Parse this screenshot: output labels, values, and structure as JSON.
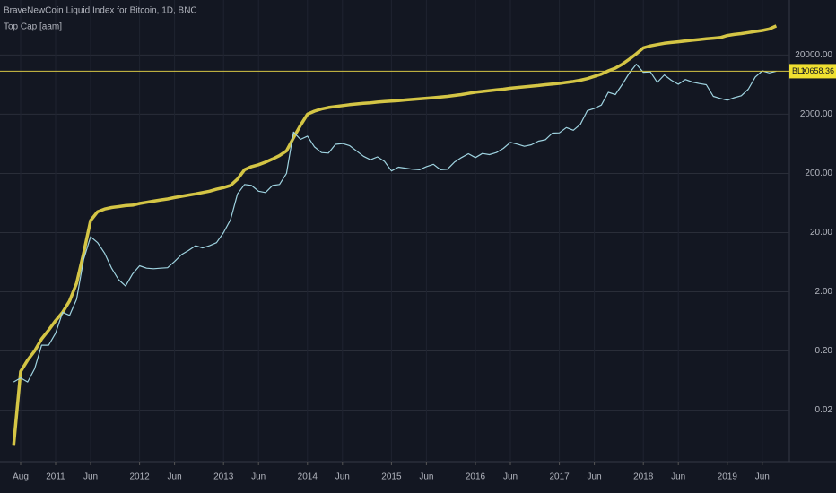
{
  "chart_data": {
    "type": "line",
    "title": "BraveNewCoin Liquid Index for Bitcoin, 1D, BNC",
    "subtitle": "Top Cap [aam]",
    "log_scale": true,
    "grid": true,
    "x": [
      "2010-07",
      "2010-08",
      "2010-09",
      "2010-10",
      "2010-11",
      "2010-12",
      "2011-01",
      "2011-02",
      "2011-03",
      "2011-04",
      "2011-05",
      "2011-06",
      "2011-07",
      "2011-08",
      "2011-09",
      "2011-10",
      "2011-11",
      "2011-12",
      "2012-01",
      "2012-02",
      "2012-03",
      "2012-04",
      "2012-05",
      "2012-06",
      "2012-07",
      "2012-08",
      "2012-09",
      "2012-10",
      "2012-11",
      "2012-12",
      "2013-01",
      "2013-02",
      "2013-03",
      "2013-04",
      "2013-05",
      "2013-06",
      "2013-07",
      "2013-08",
      "2013-09",
      "2013-10",
      "2013-11",
      "2013-12",
      "2014-01",
      "2014-02",
      "2014-03",
      "2014-04",
      "2014-05",
      "2014-06",
      "2014-07",
      "2014-08",
      "2014-09",
      "2014-10",
      "2014-11",
      "2014-12",
      "2015-01",
      "2015-02",
      "2015-03",
      "2015-04",
      "2015-05",
      "2015-06",
      "2015-07",
      "2015-08",
      "2015-09",
      "2015-10",
      "2015-11",
      "2015-12",
      "2016-01",
      "2016-02",
      "2016-03",
      "2016-04",
      "2016-05",
      "2016-06",
      "2016-07",
      "2016-08",
      "2016-09",
      "2016-10",
      "2016-11",
      "2016-12",
      "2017-01",
      "2017-02",
      "2017-03",
      "2017-04",
      "2017-05",
      "2017-06",
      "2017-07",
      "2017-08",
      "2017-09",
      "2017-10",
      "2017-11",
      "2017-12",
      "2018-01",
      "2018-02",
      "2018-03",
      "2018-04",
      "2018-05",
      "2018-06",
      "2018-07",
      "2018-08",
      "2018-09",
      "2018-10",
      "2018-11",
      "2018-12",
      "2019-01",
      "2019-02",
      "2019-03",
      "2019-04",
      "2019-05",
      "2019-06",
      "2019-07",
      "2019-08"
    ],
    "series": [
      {
        "name": "BLX",
        "color": "#9fd3e0",
        "values": [
          0.06,
          0.07,
          0.06,
          0.1,
          0.25,
          0.25,
          0.4,
          0.9,
          0.8,
          1.5,
          7,
          17,
          13.5,
          9,
          5,
          3.2,
          2.5,
          4,
          5.5,
          5,
          4.9,
          5,
          5.1,
          6.5,
          8.5,
          10,
          12,
          11,
          12,
          13.5,
          20,
          33,
          90,
          130,
          125,
          100,
          95,
          125,
          130,
          200,
          1000,
          750,
          850,
          560,
          450,
          440,
          620,
          640,
          590,
          480,
          390,
          340,
          380,
          320,
          220,
          255,
          245,
          235,
          230,
          260,
          285,
          230,
          235,
          310,
          370,
          430,
          370,
          435,
          415,
          450,
          530,
          670,
          625,
          575,
          610,
          700,
          740,
          960,
          970,
          1190,
          1070,
          1350,
          2300,
          2500,
          2850,
          4700,
          4300,
          6400,
          9900,
          14000,
          10200,
          10400,
          6900,
          9200,
          7500,
          6400,
          7700,
          7000,
          6600,
          6300,
          4000,
          3700,
          3450,
          3800,
          4100,
          5300,
          8500,
          10800,
          10000,
          10658.36
        ]
      },
      {
        "name": "Top Cap",
        "color": "#d4c545",
        "values": [
          0.005,
          0.09,
          0.14,
          0.2,
          0.32,
          0.45,
          0.65,
          0.9,
          1.4,
          2.8,
          9,
          32,
          45,
          50,
          53,
          55,
          57,
          58,
          62,
          65,
          68,
          71,
          74,
          78,
          82,
          86,
          90,
          95,
          100,
          108,
          115,
          125,
          160,
          230,
          260,
          280,
          310,
          350,
          400,
          480,
          800,
          1300,
          2000,
          2250,
          2450,
          2600,
          2700,
          2800,
          2900,
          2980,
          3050,
          3120,
          3200,
          3270,
          3330,
          3400,
          3480,
          3560,
          3640,
          3720,
          3800,
          3900,
          4000,
          4150,
          4300,
          4500,
          4700,
          4850,
          5000,
          5150,
          5300,
          5500,
          5650,
          5800,
          5950,
          6100,
          6300,
          6450,
          6650,
          6900,
          7150,
          7500,
          8000,
          8700,
          9500,
          10800,
          12000,
          14000,
          17000,
          21000,
          26400,
          28500,
          30000,
          31500,
          32500,
          33500,
          34500,
          35500,
          36500,
          37500,
          38500,
          39500,
          42700,
          44500,
          46000,
          48000,
          50000,
          52000,
          55000,
          62000
        ]
      }
    ],
    "ylim": [
      0.0027,
      170000
    ],
    "yticks": [
      {
        "value": 0.02,
        "label": "0.02"
      },
      {
        "value": 0.2,
        "label": "0.20"
      },
      {
        "value": 2,
        "label": "2.00"
      },
      {
        "value": 20,
        "label": "20.00"
      },
      {
        "value": 200,
        "label": "200.00"
      },
      {
        "value": 2000,
        "label": "2000.00"
      },
      {
        "value": 20000,
        "label": "20000.00"
      }
    ],
    "xticks": [
      {
        "value": "2010-08",
        "label": "Aug"
      },
      {
        "value": "2011-01",
        "label": "2011"
      },
      {
        "value": "2011-06",
        "label": "Jun"
      },
      {
        "value": "2012-01",
        "label": "2012"
      },
      {
        "value": "2012-06",
        "label": "Jun"
      },
      {
        "value": "2013-01",
        "label": "2013"
      },
      {
        "value": "2013-06",
        "label": "Jun"
      },
      {
        "value": "2014-01",
        "label": "2014"
      },
      {
        "value": "2014-06",
        "label": "Jun"
      },
      {
        "value": "2015-01",
        "label": "2015"
      },
      {
        "value": "2015-06",
        "label": "Jun"
      },
      {
        "value": "2016-01",
        "label": "2016"
      },
      {
        "value": "2016-06",
        "label": "Jun"
      },
      {
        "value": "2017-01",
        "label": "2017"
      },
      {
        "value": "2017-06",
        "label": "Jun"
      },
      {
        "value": "2018-01",
        "label": "2018"
      },
      {
        "value": "2018-06",
        "label": "Jun"
      },
      {
        "value": "2019-01",
        "label": "2019"
      },
      {
        "value": "2019-06",
        "label": "Jun"
      }
    ]
  }
}
